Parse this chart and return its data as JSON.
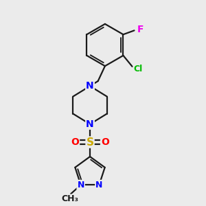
{
  "background_color": "#ebebeb",
  "bond_color": "#1a1a1a",
  "bond_width": 1.6,
  "atom_colors": {
    "N": "#0000ff",
    "O": "#ff0000",
    "S": "#ccaa00",
    "Cl": "#00bb00",
    "F": "#ee00ee",
    "C": "#1a1a1a"
  },
  "font_size": 9
}
